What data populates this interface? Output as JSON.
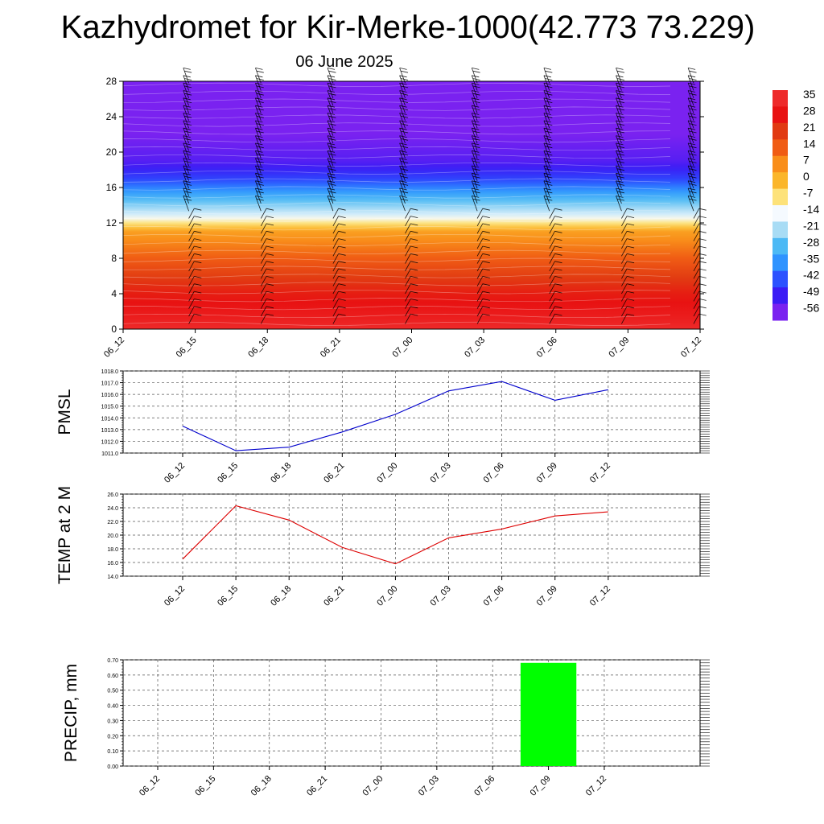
{
  "title": "Kazhydromet for Kir-Merke-1000(42.773 73.229)",
  "subtitle": "06 June 2025",
  "chart_data": [
    {
      "type": "heatmap",
      "name": "temperature-wind cross section",
      "x_categories": [
        "06_12",
        "06_15",
        "06_18",
        "06_21",
        "07_00",
        "07_03",
        "07_06",
        "07_09",
        "07_12"
      ],
      "ylim": [
        0,
        28
      ],
      "y_ticks": [
        0,
        4,
        8,
        12,
        16,
        20,
        24,
        28
      ],
      "colorbar": {
        "labels": [
          "35",
          "28",
          "21",
          "14",
          "7",
          "0",
          "-7",
          "-14",
          "-21",
          "-28",
          "-35",
          "-42",
          "-49",
          "-56"
        ],
        "colors": [
          "#ee2a2a",
          "#e81212",
          "#e13a12",
          "#f05c14",
          "#f98e1a",
          "#fbb62a",
          "#fde27a",
          "#f5faff",
          "#a8dcf5",
          "#4cb9f5",
          "#2f93ff",
          "#2c52ff",
          "#3b1cf5",
          "#7a22f0"
        ]
      },
      "temperature_profile": [
        {
          "height": 0,
          "value": 35
        },
        {
          "height": 1,
          "value": 32
        },
        {
          "height": 4,
          "value": 26
        },
        {
          "height": 8,
          "value": 14
        },
        {
          "height": 11,
          "value": 4
        },
        {
          "height": 12.2,
          "value": -10
        },
        {
          "height": 12.8,
          "value": -16
        },
        {
          "height": 15,
          "value": -30
        },
        {
          "height": 17,
          "value": -44
        },
        {
          "height": 19,
          "value": -52
        },
        {
          "height": 22,
          "value": -56
        },
        {
          "height": 28,
          "value": -60
        }
      ]
    },
    {
      "type": "line",
      "ylabel": "PMSL",
      "categories": [
        "06_12",
        "06_15",
        "06_18",
        "06_21",
        "07_00",
        "07_03",
        "07_06",
        "07_09",
        "07_12"
      ],
      "series": [
        {
          "values": [
            1013.3,
            1011.2,
            1011.5,
            1012.8,
            1014.3,
            1016.3,
            1017.1,
            1015.5,
            1016.4
          ],
          "color": "#0000cc"
        }
      ],
      "ylim": [
        1011.0,
        1018.0
      ],
      "y_ticks": [
        "1011.0",
        "1012.0",
        "1013.0",
        "1014.0",
        "1015.0",
        "1016.0",
        "1017.0",
        "1018.0"
      ]
    },
    {
      "type": "line",
      "ylabel": "TEMP at 2 M",
      "categories": [
        "06_12",
        "06_15",
        "06_18",
        "06_21",
        "07_00",
        "07_03",
        "07_06",
        "07_09",
        "07_12"
      ],
      "series": [
        {
          "values": [
            16.5,
            24.3,
            22.2,
            18.2,
            15.8,
            19.6,
            20.9,
            22.8,
            23.4
          ],
          "color": "#dd0000"
        }
      ],
      "ylim": [
        14.0,
        26.0
      ],
      "y_ticks": [
        "14.0",
        "16.0",
        "18.0",
        "20.0",
        "22.0",
        "24.0",
        "26.0"
      ]
    },
    {
      "type": "bar",
      "ylabel": "PRECIP, mm",
      "categories": [
        "06_12",
        "06_15",
        "06_18",
        "06_21",
        "07_00",
        "07_03",
        "07_06",
        "07_09",
        "07_12"
      ],
      "values": [
        0,
        0,
        0,
        0,
        0,
        0,
        0,
        0.68,
        0
      ],
      "bar_color": "#00ff00",
      "ylim": [
        0,
        0.7
      ],
      "y_ticks": [
        "0.00",
        "0.10",
        "0.20",
        "0.30",
        "0.40",
        "0.50",
        "0.60",
        "0.70"
      ]
    }
  ]
}
